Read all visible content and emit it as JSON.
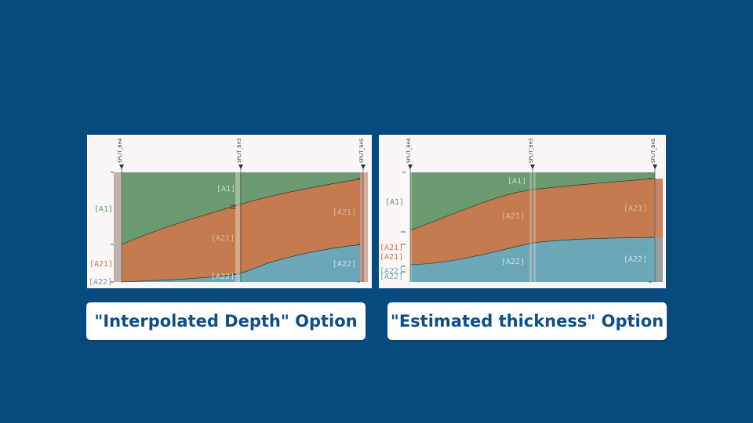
{
  "colors": {
    "background": "#074a7d",
    "A1": "#6c9a70",
    "A21": "#c27a4e",
    "A22": "#6ba7b7",
    "caption_text": "#0d4f86"
  },
  "left": {
    "caption": "\"Interpolated Depth\" Option",
    "boreholes": [
      "SPLIT_BH4",
      "SPLIT_BH3",
      "SPLIT_BH5"
    ],
    "labels": {
      "bh4_a1": "[A1]",
      "bh4_a21": "[A21]",
      "bh4_a22": "[A22]",
      "bh3_a1": "[A1]",
      "bh3_a21": "[A21]",
      "bh3_a22": "[A22]",
      "bh5_a21": "[A21]",
      "bh5_a22": "[A22]"
    }
  },
  "right": {
    "caption": "\"Estimated thickness\" Option",
    "boreholes": [
      "SPLIT_BH4",
      "SPLIT_BH3",
      "SPLIT_BH5"
    ],
    "labels": {
      "bh4_a1": "[A1]",
      "bh4_a21a": "[A21]",
      "bh4_a21b": "[A21]",
      "bh4_a22a": "[A22]",
      "bh4_a22b": "[A22]",
      "bh3_a1": "[A1]",
      "bh3_a21": "[A21]",
      "bh3_a22": "[A22]",
      "bh5_a21": "[A21]",
      "bh5_a22": "[A22]"
    }
  }
}
